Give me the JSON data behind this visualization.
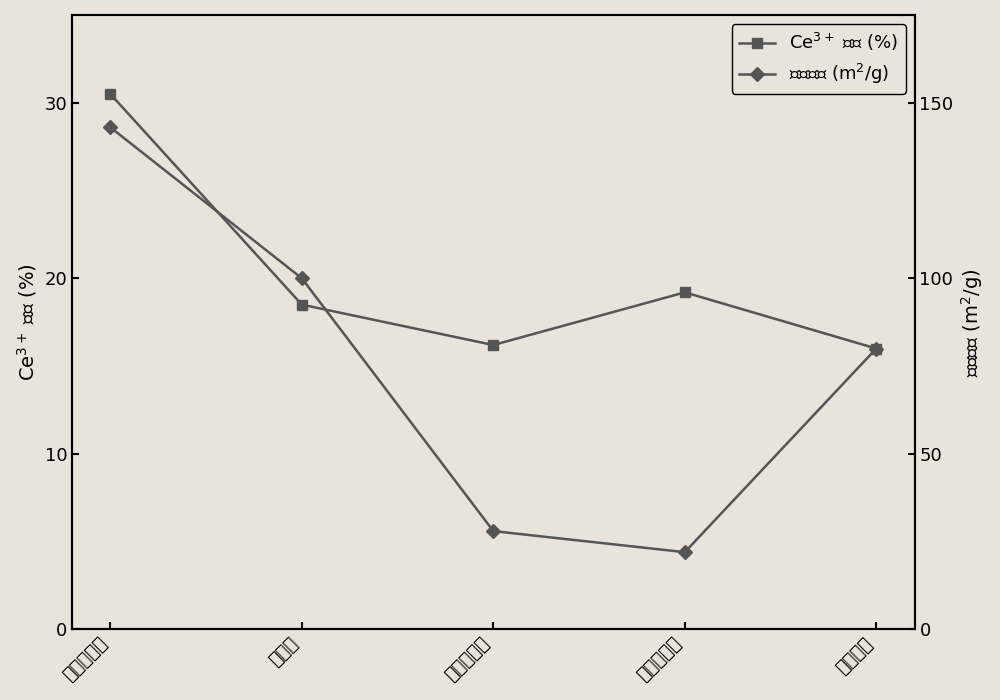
{
  "categories": [
    "介孔纳米棒",
    "纳米棒",
    "纳米立方体",
    "纳米八面体",
    "纳米颗粒"
  ],
  "ce3_ratio": [
    30.5,
    18.5,
    16.2,
    19.2,
    16.0
  ],
  "surface_area": [
    143,
    100,
    28,
    22,
    80
  ],
  "ylabel_left": "Ce$^{3+}$ 比例 (%)",
  "ylabel_right": "比表面积 (m$^{2}$/g)",
  "legend_ce3": "Ce$^{3+}$ 比例 (%)",
  "legend_sa": "比表面积 (m$^{2}$/g)",
  "ylim_left": [
    0,
    35
  ],
  "ylim_right": [
    0,
    175
  ],
  "line_color": "#555555",
  "marker_ce3": "s",
  "marker_sa": "D",
  "markersize": 7,
  "linewidth": 1.8,
  "background_color": "#e8e4dc",
  "tick_fontsize": 13,
  "label_fontsize": 14
}
